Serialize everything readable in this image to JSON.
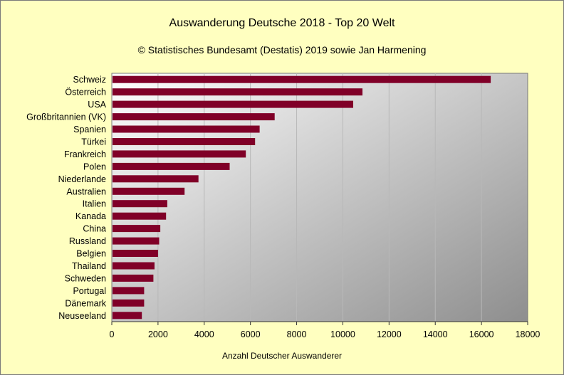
{
  "chart_data": {
    "type": "bar",
    "orientation": "horizontal",
    "title": "Auswanderung Deutsche 2018 - Top 20 Welt",
    "subtitle": "© Statistisches Bundesamt (Destatis) 2019 sowie Jan Harmening",
    "xlabel": "Anzahl Deutscher Auswanderer",
    "ylabel": "",
    "xlim": [
      0,
      18000
    ],
    "xticks": [
      0,
      2000,
      4000,
      6000,
      8000,
      10000,
      12000,
      14000,
      16000,
      18000
    ],
    "grid": true,
    "categories": [
      "Schweiz",
      "Österreich",
      "USA",
      "Großbritannien (VK)",
      "Spanien",
      "Türkei",
      "Frankreich",
      "Polen",
      "Niederlande",
      "Australien",
      "Italien",
      "Kanada",
      "China",
      "Russland",
      "Belgien",
      "Thailand",
      "Schweden",
      "Portugal",
      "Dänemark",
      "Neuseeland"
    ],
    "values": [
      16400,
      10850,
      10450,
      7050,
      6400,
      6200,
      5800,
      5100,
      3750,
      3150,
      2400,
      2350,
      2100,
      2050,
      2000,
      1850,
      1800,
      1400,
      1400,
      1300
    ],
    "bar_color": "#800028",
    "background_color": "#ffffc0"
  }
}
